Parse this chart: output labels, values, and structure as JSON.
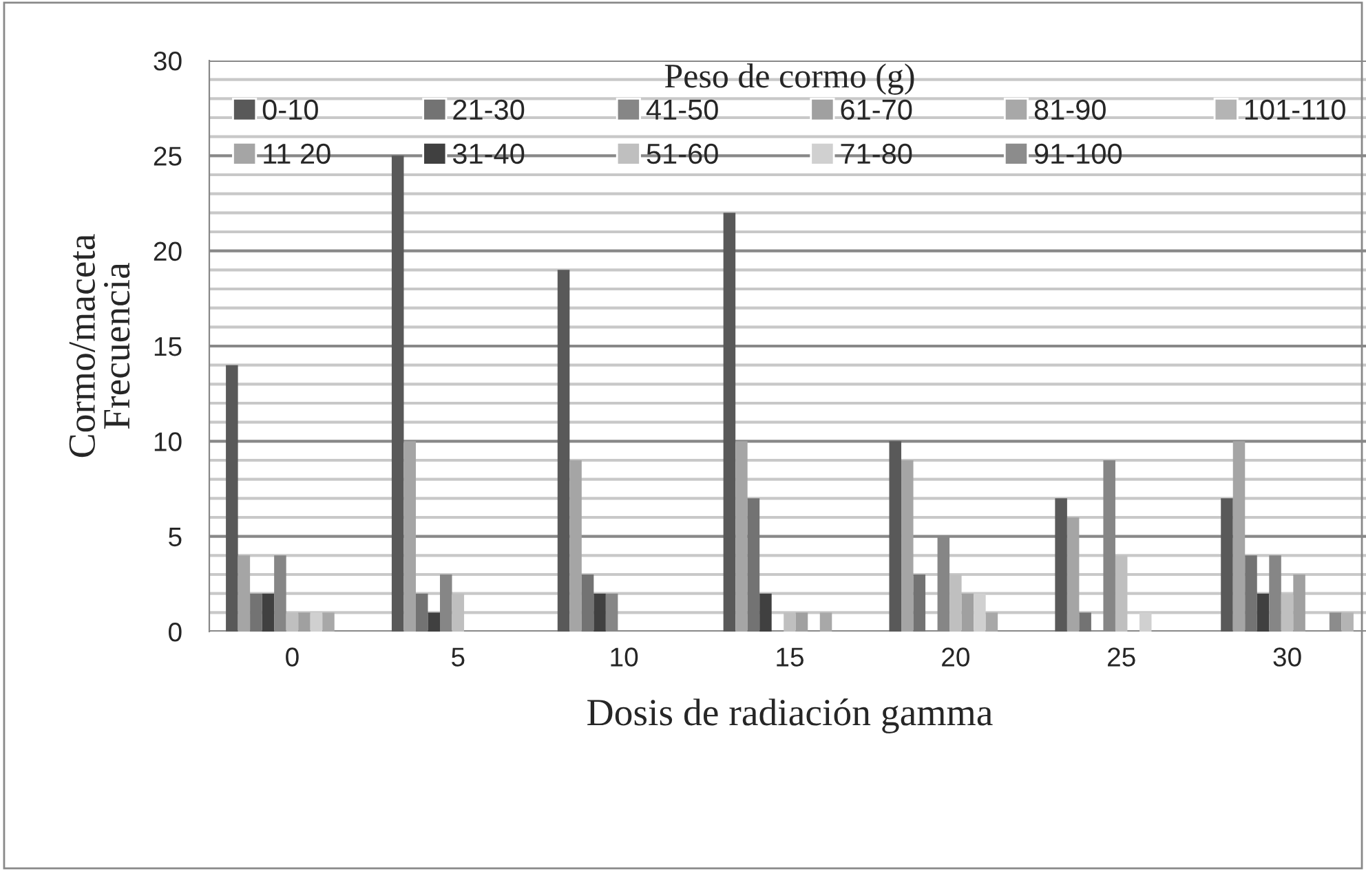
{
  "chart_data": {
    "type": "bar",
    "xlabel": "Dosis de radiación gamma",
    "ylabel": "Cormo/maceta\nFrecuencia",
    "legend_title": "Peso de cormo (g)",
    "categories": [
      "0",
      "5",
      "10",
      "15",
      "20",
      "25",
      "30"
    ],
    "series": [
      {
        "name": "0-10",
        "color": "#595959",
        "values": [
          14,
          25,
          19,
          22,
          10,
          7,
          7
        ]
      },
      {
        "name": "11 20",
        "color": "#a5a5a5",
        "values": [
          4,
          10,
          9,
          10,
          9,
          6,
          10
        ]
      },
      {
        "name": "21-30",
        "color": "#737373",
        "values": [
          2,
          2,
          3,
          7,
          3,
          1,
          4
        ]
      },
      {
        "name": "31-40",
        "color": "#404040",
        "values": [
          2,
          1,
          2,
          2,
          0,
          0,
          2
        ]
      },
      {
        "name": "41-50",
        "color": "#868686",
        "values": [
          4,
          3,
          2,
          0,
          5,
          9,
          4
        ]
      },
      {
        "name": "51-60",
        "color": "#bfbfbf",
        "values": [
          1,
          2,
          0,
          1,
          3,
          4,
          2
        ]
      },
      {
        "name": "61-70",
        "color": "#a0a0a0",
        "values": [
          1,
          0,
          0,
          1,
          2,
          0,
          3
        ]
      },
      {
        "name": "71-80",
        "color": "#d0d0d0",
        "values": [
          1,
          0,
          0,
          0,
          2,
          1,
          0
        ]
      },
      {
        "name": "81-90",
        "color": "#a8a8a8",
        "values": [
          1,
          0,
          0,
          1,
          1,
          0,
          0
        ]
      },
      {
        "name": "91-100",
        "color": "#8c8c8c",
        "values": [
          0,
          0,
          0,
          0,
          0,
          0,
          1
        ]
      },
      {
        "name": "101-110",
        "color": "#b4b4b4",
        "values": [
          0,
          0,
          0,
          0,
          0,
          0,
          1
        ]
      }
    ],
    "ylim": [
      0,
      30
    ],
    "yticks": [
      0,
      5,
      10,
      15,
      20,
      25,
      30
    ],
    "grid": "y",
    "legend": "top"
  }
}
